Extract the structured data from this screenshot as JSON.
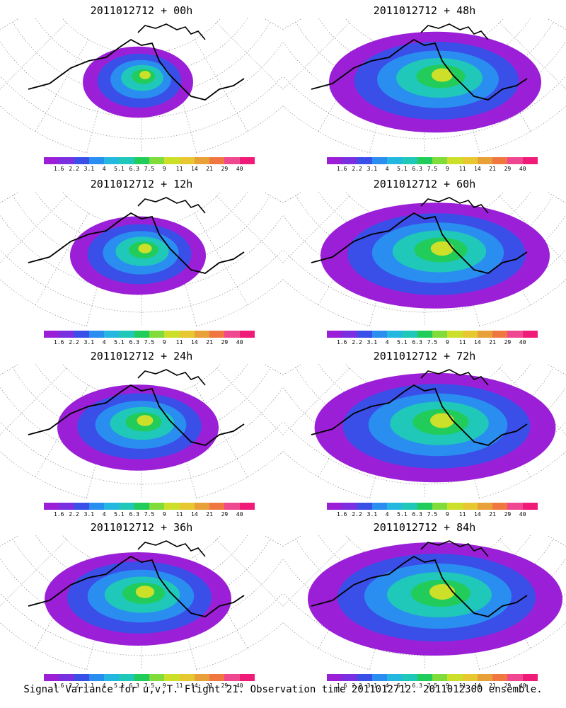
{
  "panels": [
    {
      "title": "2011012712 + 00h",
      "intensity": 0.15
    },
    {
      "title": "2011012712 + 48h",
      "intensity": 0.75
    },
    {
      "title": "2011012712 + 12h",
      "intensity": 0.3
    },
    {
      "title": "2011012712 + 60h",
      "intensity": 0.85
    },
    {
      "title": "2011012712 + 24h",
      "intensity": 0.45
    },
    {
      "title": "2011012712 + 72h",
      "intensity": 0.92
    },
    {
      "title": "2011012712 + 36h",
      "intensity": 0.6
    },
    {
      "title": "2011012712 + 84h",
      "intensity": 1.0
    }
  ],
  "colorbar": {
    "labels": [
      "1.6",
      "2.2",
      "3.1",
      "4",
      "5.1",
      "6.3",
      "7.5",
      "9",
      "11",
      "14",
      "21",
      "29",
      "40"
    ],
    "colors": [
      "#9b1fd6",
      "#7a2fe0",
      "#3a4fe8",
      "#2a8ef0",
      "#24b8e0",
      "#1fc8b8",
      "#22cc5a",
      "#7fdc3a",
      "#cce02a",
      "#e8c830",
      "#e8a038",
      "#f07840",
      "#f04890",
      "#f01a78"
    ]
  },
  "footer": "Signal Variance for u,v,T. Flight 21. Observation time 2011012712. 2011012300 ensemble."
}
